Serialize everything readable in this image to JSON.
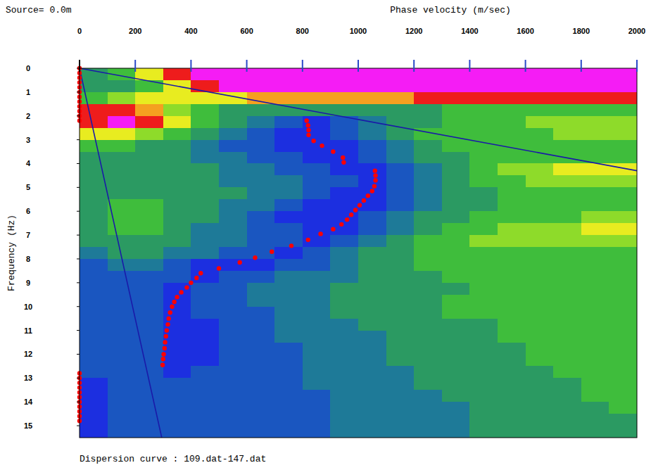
{
  "chart_data": {
    "type": "heatmap",
    "annotations": [
      "Source= 0.0m",
      "Dispersion curve : 109.dat-147.dat"
    ],
    "xlabel": "Phase velocity (m/sec)",
    "ylabel": "Frequency (Hz)",
    "xlim": [
      0,
      2000
    ],
    "ylim": [
      0,
      15.5
    ],
    "xticks": [
      0,
      200,
      400,
      600,
      800,
      1000,
      1200,
      1400,
      1600,
      1800,
      2000
    ],
    "yticks": [
      0,
      1,
      2,
      3,
      4,
      5,
      6,
      7,
      8,
      9,
      10,
      11,
      12,
      13,
      14,
      15
    ],
    "grid": false,
    "colorscale": [
      "#1c2fe0",
      "#1a56c0",
      "#1e7a98",
      "#2b9a62",
      "#3fbd3c",
      "#8edb2a",
      "#e8ec20",
      "#f5a020",
      "#ee1c1c",
      "#f51cf5"
    ],
    "x_bins": [
      0,
      100,
      200,
      300,
      400,
      500,
      600,
      700,
      800,
      900,
      1000,
      1100,
      1200,
      1300,
      1400,
      1500,
      1600,
      1700,
      1800,
      1900,
      2000
    ],
    "y_bins": [
      0,
      0.5,
      1,
      1.5,
      2,
      2.5,
      3,
      3.5,
      4,
      4.5,
      5,
      5.5,
      6,
      6.5,
      7,
      7.5,
      8,
      8.5,
      9,
      9.5,
      10,
      10.5,
      11,
      11.5,
      12,
      12.5,
      13,
      13.5,
      14,
      14.5,
      15,
      15.5
    ],
    "cells": [
      [
        3,
        4,
        6,
        8,
        9,
        9,
        9,
        9,
        9,
        9,
        9,
        9,
        9,
        9,
        9,
        9,
        9,
        9,
        9,
        9
      ],
      [
        3,
        3,
        4,
        6,
        8,
        9,
        9,
        9,
        9,
        9,
        9,
        9,
        9,
        9,
        9,
        9,
        9,
        9,
        9,
        9
      ],
      [
        4,
        5,
        6,
        6,
        6,
        6,
        7,
        7,
        7,
        7,
        7,
        7,
        8,
        8,
        8,
        8,
        8,
        8,
        8,
        8
      ],
      [
        8,
        8,
        7,
        5,
        4,
        3,
        3,
        3,
        3,
        3,
        3,
        3,
        3,
        4,
        4,
        4,
        4,
        4,
        4,
        4
      ],
      [
        8,
        9,
        8,
        6,
        4,
        3,
        2,
        1,
        0,
        1,
        2,
        3,
        3,
        4,
        4,
        4,
        5,
        5,
        5,
        5
      ],
      [
        6,
        6,
        5,
        4,
        3,
        2,
        1,
        0,
        0,
        1,
        2,
        3,
        4,
        4,
        4,
        4,
        4,
        5,
        5,
        5
      ],
      [
        4,
        4,
        3,
        3,
        2,
        1,
        1,
        0,
        0,
        0,
        1,
        2,
        3,
        4,
        4,
        4,
        4,
        4,
        4,
        4
      ],
      [
        3,
        3,
        3,
        3,
        2,
        2,
        1,
        1,
        0,
        0,
        1,
        2,
        3,
        3,
        4,
        4,
        4,
        4,
        4,
        4
      ],
      [
        3,
        3,
        3,
        3,
        3,
        2,
        2,
        1,
        1,
        0,
        0,
        1,
        2,
        3,
        4,
        5,
        5,
        6,
        6,
        6
      ],
      [
        3,
        3,
        3,
        3,
        3,
        2,
        2,
        2,
        1,
        1,
        0,
        1,
        2,
        3,
        4,
        4,
        5,
        5,
        5,
        5
      ],
      [
        3,
        3,
        3,
        3,
        3,
        3,
        2,
        2,
        1,
        0,
        0,
        1,
        2,
        3,
        3,
        4,
        4,
        4,
        4,
        4
      ],
      [
        3,
        4,
        4,
        3,
        3,
        2,
        2,
        1,
        0,
        0,
        0,
        1,
        2,
        3,
        3,
        4,
        4,
        4,
        4,
        4
      ],
      [
        3,
        4,
        4,
        3,
        3,
        2,
        1,
        0,
        0,
        0,
        1,
        2,
        3,
        3,
        4,
        4,
        4,
        4,
        5,
        5
      ],
      [
        3,
        4,
        4,
        3,
        2,
        2,
        1,
        1,
        0,
        0,
        1,
        2,
        3,
        4,
        4,
        5,
        5,
        5,
        6,
        6
      ],
      [
        3,
        3,
        3,
        3,
        2,
        2,
        1,
        1,
        0,
        1,
        2,
        3,
        4,
        4,
        5,
        5,
        5,
        5,
        5,
        5
      ],
      [
        2,
        3,
        3,
        2,
        2,
        1,
        1,
        0,
        1,
        2,
        3,
        3,
        4,
        4,
        4,
        4,
        4,
        4,
        4,
        4
      ],
      [
        1,
        2,
        2,
        1,
        0,
        0,
        0,
        1,
        1,
        2,
        3,
        3,
        4,
        4,
        4,
        4,
        4,
        4,
        4,
        4
      ],
      [
        1,
        1,
        1,
        1,
        0,
        1,
        1,
        2,
        2,
        2,
        3,
        3,
        3,
        4,
        4,
        4,
        4,
        4,
        4,
        4
      ],
      [
        1,
        1,
        1,
        0,
        1,
        1,
        2,
        2,
        2,
        3,
        3,
        3,
        3,
        3,
        4,
        4,
        4,
        4,
        4,
        4
      ],
      [
        1,
        1,
        1,
        0,
        1,
        1,
        2,
        2,
        2,
        3,
        3,
        3,
        3,
        4,
        4,
        4,
        4,
        4,
        4,
        4
      ],
      [
        1,
        1,
        1,
        0,
        1,
        1,
        1,
        2,
        2,
        3,
        3,
        3,
        3,
        4,
        4,
        4,
        4,
        4,
        4,
        4
      ],
      [
        1,
        1,
        1,
        0,
        0,
        1,
        1,
        2,
        2,
        2,
        3,
        3,
        3,
        3,
        3,
        4,
        4,
        4,
        4,
        4
      ],
      [
        1,
        1,
        1,
        0,
        0,
        1,
        1,
        2,
        2,
        2,
        2,
        3,
        3,
        3,
        3,
        4,
        4,
        4,
        4,
        4
      ],
      [
        1,
        1,
        1,
        0,
        0,
        1,
        1,
        1,
        2,
        2,
        2,
        3,
        3,
        3,
        3,
        3,
        4,
        4,
        4,
        4
      ],
      [
        1,
        1,
        1,
        0,
        0,
        1,
        1,
        1,
        2,
        2,
        2,
        3,
        3,
        3,
        3,
        3,
        4,
        4,
        4,
        4
      ],
      [
        1,
        1,
        1,
        0,
        1,
        1,
        1,
        1,
        2,
        2,
        2,
        2,
        3,
        3,
        3,
        3,
        3,
        4,
        4,
        4
      ],
      [
        0,
        1,
        1,
        1,
        1,
        1,
        1,
        1,
        2,
        2,
        2,
        2,
        3,
        3,
        3,
        3,
        3,
        3,
        4,
        4
      ],
      [
        0,
        1,
        1,
        1,
        1,
        1,
        1,
        1,
        1,
        2,
        2,
        2,
        2,
        3,
        3,
        3,
        3,
        3,
        4,
        4
      ],
      [
        0,
        1,
        1,
        1,
        1,
        1,
        1,
        1,
        1,
        2,
        2,
        2,
        2,
        2,
        3,
        3,
        3,
        3,
        3,
        4
      ],
      [
        0,
        1,
        1,
        1,
        1,
        1,
        1,
        1,
        1,
        2,
        2,
        2,
        2,
        2,
        3,
        3,
        3,
        3,
        3,
        3
      ],
      [
        0,
        1,
        1,
        1,
        1,
        1,
        1,
        1,
        1,
        2,
        2,
        2,
        2,
        2,
        3,
        3,
        3,
        3,
        3,
        3
      ]
    ],
    "series": [
      {
        "type": "scatter",
        "color": "#ff0000",
        "marker": "circle",
        "x": [
          0,
          0,
          0,
          0,
          0,
          0,
          0,
          0,
          0,
          0,
          0,
          0,
          815,
          820,
          822,
          822,
          840,
          870,
          910,
          945,
          948,
          1060,
          1062,
          1062,
          1058,
          1050,
          1035,
          1020,
          1005,
          990,
          975,
          960,
          940,
          910,
          865,
          820,
          760,
          690,
          630,
          575,
          500,
          435,
          420,
          400,
          385,
          365,
          350,
          340,
          332,
          325,
          320,
          317,
          313,
          310,
          307,
          305,
          302,
          300,
          298,
          0,
          0,
          0,
          0,
          0,
          0,
          0,
          0,
          0,
          0,
          0
        ],
        "values": [
          0,
          0.2,
          0.4,
          0.6,
          0.8,
          1,
          1.2,
          1.4,
          1.6,
          1.8,
          2,
          2.2,
          2.2,
          2.4,
          2.6,
          2.8,
          3.05,
          3.25,
          3.5,
          3.75,
          3.95,
          4.3,
          4.5,
          4.7,
          4.95,
          5.15,
          5.35,
          5.55,
          5.75,
          5.95,
          6.15,
          6.35,
          6.55,
          6.75,
          6.95,
          7.2,
          7.45,
          7.7,
          7.95,
          8.15,
          8.4,
          8.6,
          8.8,
          9.0,
          9.2,
          9.4,
          9.6,
          9.8,
          10.0,
          10.25,
          10.5,
          10.75,
          11.0,
          11.25,
          11.5,
          11.75,
          12.0,
          12.2,
          12.45,
          12.8,
          13.0,
          13.2,
          13.4,
          13.6,
          13.8,
          14.0,
          14.2,
          14.4,
          14.6,
          14.8
        ]
      },
      {
        "type": "line",
        "color": "#1a1aa8",
        "line_style": "solid",
        "x": [
          0,
          2000
        ],
        "values": [
          0,
          4.3
        ]
      },
      {
        "type": "line",
        "color": "#1a1aa8",
        "line_style": "solid",
        "x": [
          0,
          295
        ],
        "values": [
          0,
          15.5
        ]
      }
    ]
  }
}
